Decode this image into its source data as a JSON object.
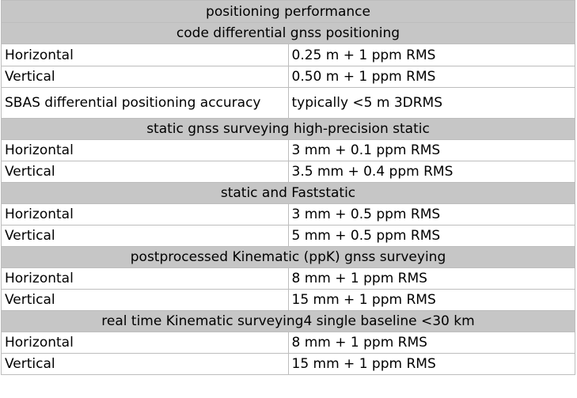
{
  "table": {
    "title": "positioning performance",
    "sections": [
      {
        "heading": "code differential gnss positioning",
        "rows": [
          {
            "label": "Horizontal",
            "value": "0.25 m + 1 ppm RMS"
          },
          {
            "label": "Vertical",
            "value": "0.50 m + 1 ppm RMS"
          },
          {
            "label": "SBAS differential positioning accuracy",
            "value": "typically <5 m 3DRMS"
          }
        ]
      },
      {
        "heading": "static gnss surveying  high-precision static",
        "rows": [
          {
            "label": "Horizontal",
            "value": "3 mm + 0.1 ppm RMS"
          },
          {
            "label": "Vertical",
            "value": "3.5 mm + 0.4 ppm RMS"
          }
        ]
      },
      {
        "heading": "static and Faststatic",
        "rows": [
          {
            "label": "Horizontal",
            "value": "3 mm + 0.5 ppm RMS"
          },
          {
            "label": "Vertical",
            "value": "5 mm + 0.5 ppm RMS"
          }
        ]
      },
      {
        "heading": "postprocessed Kinematic (ppK) gnss surveying",
        "rows": [
          {
            "label": "Horizontal",
            "value": "8 mm + 1 ppm RMS"
          },
          {
            "label": "Vertical",
            "value": "15 mm + 1 ppm RMS"
          }
        ]
      },
      {
        "heading": "real time Kinematic surveying4 single baseline <30 km",
        "rows": [
          {
            "label": "Horizontal",
            "value": "8 mm + 1 ppm RMS"
          },
          {
            "label": "Vertical",
            "value": "15 mm + 1 ppm RMS"
          }
        ]
      }
    ]
  }
}
